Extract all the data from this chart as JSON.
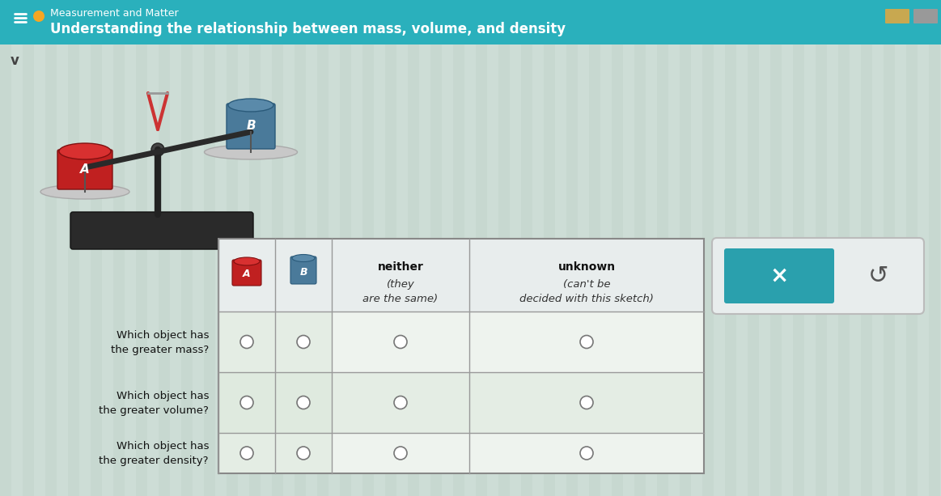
{
  "title_line1": "Measurement and Matter",
  "title_line2": "Understanding the relationship between mass, volume, and density",
  "header_bg_color": "#2ab0bc",
  "header_text_color": "#ffffff",
  "body_bg_color": "#cdddd6",
  "orange_dot_color": "#f5a623",
  "button_x_color": "#2aa0ad",
  "button_x_text": "×",
  "button_undo_text": "↺",
  "col_header_neither": "neither (they\nare the same)",
  "col_header_unknown": "unknown (can't be\ndecided with this sketch)",
  "row_labels": [
    "Which object has\nthe greater mass?",
    "Which object has\nthe greater volume?",
    "Which object has\nthe greater density?"
  ],
  "table_bg_even": "#eaf0ea",
  "table_bg_odd": "#dce8dc",
  "table_header_bg": "#e4ecec",
  "scale_bg": "#c8d8d0",
  "body_stripe_color": "#bfcfc8"
}
